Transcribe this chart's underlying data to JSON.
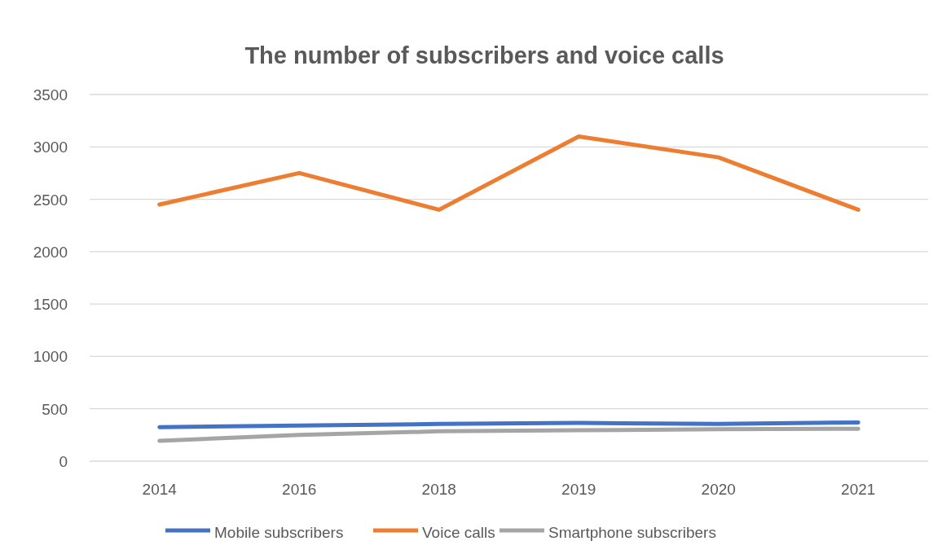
{
  "chart_data": {
    "type": "line",
    "title": "The number of subscribers and voice calls",
    "categories": [
      "2014",
      "2016",
      "2018",
      "2019",
      "2020",
      "2021"
    ],
    "series": [
      {
        "name": "Mobile subscribers",
        "color": "#4472c4",
        "values": [
          325,
          340,
          355,
          365,
          355,
          370
        ]
      },
      {
        "name": "Voice calls",
        "color": "#ed7d31",
        "values": [
          2450,
          2750,
          2400,
          3100,
          2900,
          2400
        ]
      },
      {
        "name": "Smartphone subscribers",
        "color": "#a5a5a5",
        "values": [
          195,
          250,
          285,
          295,
          305,
          310
        ]
      }
    ],
    "ylim": [
      0,
      3500
    ],
    "yticks": [
      0,
      500,
      1000,
      1500,
      2000,
      2500,
      3000,
      3500
    ],
    "grid": "y",
    "legend": "bottom",
    "marker": "none",
    "line_style": "solid"
  }
}
